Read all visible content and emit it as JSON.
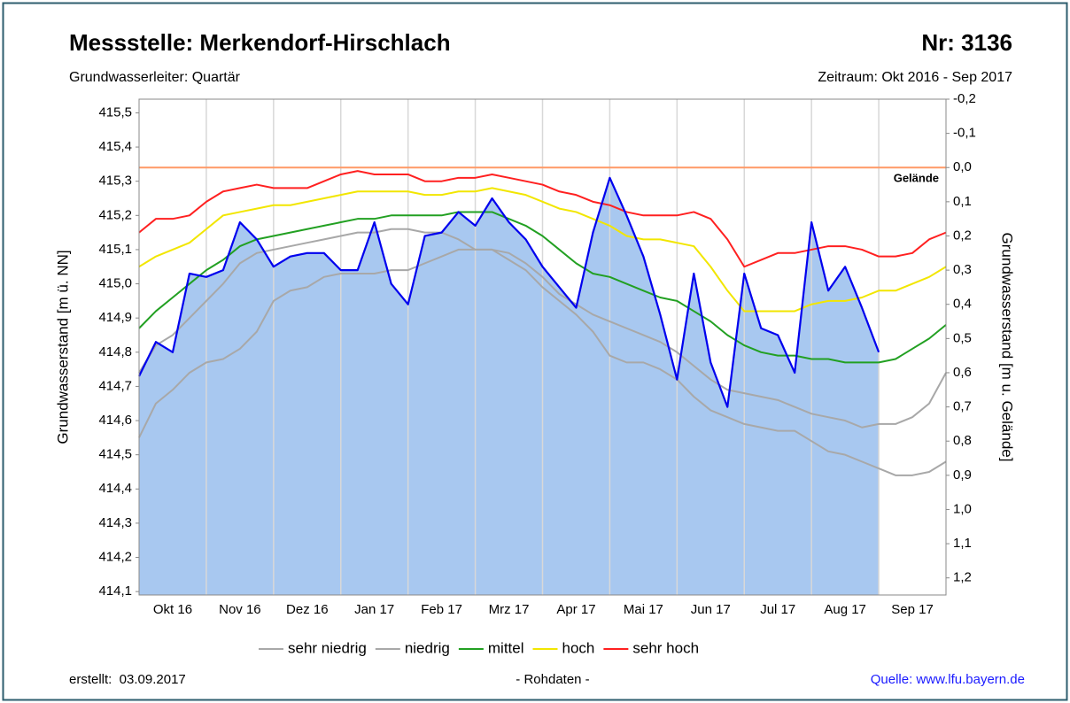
{
  "chart_data": {
    "type": "line",
    "title": "Messstelle: Merkendorf-Hirschlach",
    "number": "Nr: 3136",
    "subtitle": "Grundwasserleiter: Quartär",
    "period": "Zeitraum: Okt 2016 - Sep 2017",
    "ylabel": "Grundwasserstand [m ü. NN]",
    "y2label": "Grundwasserstand [m u. Gelände]",
    "created": "erstellt:  03.09.2017",
    "note": "- Rohdaten -",
    "source": "Quelle: www.lfu.bayern.de",
    "reference_line": {
      "label": "Gelände",
      "value": 415.34,
      "color": "#ff9966"
    },
    "x": [
      0,
      0.25,
      0.5,
      0.75,
      1,
      1.25,
      1.5,
      1.75,
      2,
      2.25,
      2.5,
      2.75,
      3,
      3.25,
      3.5,
      3.75,
      4,
      4.25,
      4.5,
      4.75,
      5,
      5.25,
      5.5,
      5.75,
      6,
      6.25,
      6.5,
      6.75,
      7,
      7.25,
      7.5,
      7.75,
      8,
      8.25,
      8.5,
      8.75,
      9,
      9.25,
      9.5,
      9.75,
      10,
      10.25,
      10.5,
      10.75,
      11,
      11.25,
      11.5,
      11.75,
      12
    ],
    "xlim": [
      0,
      12
    ],
    "xticks": [
      {
        "value": 0.5,
        "label": "Okt 16"
      },
      {
        "value": 1.5,
        "label": "Nov 16"
      },
      {
        "value": 2.5,
        "label": "Dez 16"
      },
      {
        "value": 3.5,
        "label": "Jan 17"
      },
      {
        "value": 4.5,
        "label": "Feb 17"
      },
      {
        "value": 5.5,
        "label": "Mrz 17"
      },
      {
        "value": 6.5,
        "label": "Apr 17"
      },
      {
        "value": 7.5,
        "label": "Mai 17"
      },
      {
        "value": 8.5,
        "label": "Jun 17"
      },
      {
        "value": 9.5,
        "label": "Jul 17"
      },
      {
        "value": 10.5,
        "label": "Aug 17"
      },
      {
        "value": 11.5,
        "label": "Sep 17"
      }
    ],
    "ylim": [
      414.09,
      415.54
    ],
    "yticks": [
      {
        "value": 414.1,
        "label": "414,1"
      },
      {
        "value": 414.2,
        "label": "414,2"
      },
      {
        "value": 414.3,
        "label": "414,3"
      },
      {
        "value": 414.4,
        "label": "414,4"
      },
      {
        "value": 414.5,
        "label": "414,5"
      },
      {
        "value": 414.6,
        "label": "414,6"
      },
      {
        "value": 414.7,
        "label": "414,7"
      },
      {
        "value": 414.8,
        "label": "414,8"
      },
      {
        "value": 414.9,
        "label": "414,9"
      },
      {
        "value": 415.0,
        "label": "415,0"
      },
      {
        "value": 415.1,
        "label": "415,1"
      },
      {
        "value": 415.2,
        "label": "415,2"
      },
      {
        "value": 415.3,
        "label": "415,3"
      },
      {
        "value": 415.4,
        "label": "415,4"
      },
      {
        "value": 415.5,
        "label": "415,5"
      }
    ],
    "y2lim": [
      1.25,
      -0.2
    ],
    "y2ticks": [
      {
        "value": -0.2,
        "label": "-0,2"
      },
      {
        "value": -0.1,
        "label": "-0,1"
      },
      {
        "value": 0.0,
        "label": "0,0"
      },
      {
        "value": 0.1,
        "label": "0,1"
      },
      {
        "value": 0.2,
        "label": "0,2"
      },
      {
        "value": 0.3,
        "label": "0,3"
      },
      {
        "value": 0.4,
        "label": "0,4"
      },
      {
        "value": 0.5,
        "label": "0,5"
      },
      {
        "value": 0.6,
        "label": "0,6"
      },
      {
        "value": 0.7,
        "label": "0,7"
      },
      {
        "value": 0.8,
        "label": "0,8"
      },
      {
        "value": 0.9,
        "label": "0,9"
      },
      {
        "value": 1.0,
        "label": "1,0"
      },
      {
        "value": 1.1,
        "label": "1,1"
      },
      {
        "value": 1.2,
        "label": "1,2"
      }
    ],
    "grid": true,
    "series": [
      {
        "name": "sehr niedrig",
        "color": "#a8a8a8",
        "values": [
          414.55,
          414.65,
          414.69,
          414.74,
          414.77,
          414.78,
          414.81,
          414.86,
          414.95,
          414.98,
          414.99,
          415.02,
          415.03,
          415.03,
          415.03,
          415.04,
          415.04,
          415.06,
          415.08,
          415.1,
          415.1,
          415.1,
          415.07,
          415.04,
          414.99,
          414.95,
          414.91,
          414.86,
          414.79,
          414.77,
          414.77,
          414.75,
          414.72,
          414.67,
          414.63,
          414.61,
          414.59,
          414.58,
          414.57,
          414.57,
          414.54,
          414.51,
          414.5,
          414.48,
          414.46,
          414.44,
          414.44,
          414.45,
          414.48
        ]
      },
      {
        "name": "niedrig",
        "color": "#a8a8a8",
        "values": [
          414.74,
          414.82,
          414.85,
          414.9,
          414.95,
          415.0,
          415.06,
          415.09,
          415.1,
          415.11,
          415.12,
          415.13,
          415.14,
          415.15,
          415.15,
          415.16,
          415.16,
          415.15,
          415.15,
          415.13,
          415.1,
          415.1,
          415.09,
          415.06,
          415.02,
          414.97,
          414.94,
          414.91,
          414.89,
          414.87,
          414.85,
          414.83,
          414.8,
          414.76,
          414.72,
          414.69,
          414.68,
          414.67,
          414.66,
          414.64,
          414.62,
          414.61,
          414.6,
          414.58,
          414.59,
          414.59,
          414.61,
          414.65,
          414.74
        ]
      },
      {
        "name": "mittel",
        "color": "#22a022",
        "values": [
          414.87,
          414.92,
          414.96,
          415.0,
          415.04,
          415.07,
          415.11,
          415.13,
          415.14,
          415.15,
          415.16,
          415.17,
          415.18,
          415.19,
          415.19,
          415.2,
          415.2,
          415.2,
          415.2,
          415.21,
          415.21,
          415.21,
          415.19,
          415.17,
          415.14,
          415.1,
          415.06,
          415.03,
          415.02,
          415.0,
          414.98,
          414.96,
          414.95,
          414.92,
          414.89,
          414.85,
          414.82,
          414.8,
          414.79,
          414.79,
          414.78,
          414.78,
          414.77,
          414.77,
          414.77,
          414.78,
          414.81,
          414.84,
          414.88
        ]
      },
      {
        "name": "hoch",
        "color": "#f2e600",
        "values": [
          415.05,
          415.08,
          415.1,
          415.12,
          415.16,
          415.2,
          415.21,
          415.22,
          415.23,
          415.23,
          415.24,
          415.25,
          415.26,
          415.27,
          415.27,
          415.27,
          415.27,
          415.26,
          415.26,
          415.27,
          415.27,
          415.28,
          415.27,
          415.26,
          415.24,
          415.22,
          415.21,
          415.19,
          415.17,
          415.14,
          415.13,
          415.13,
          415.12,
          415.11,
          415.05,
          414.98,
          414.92,
          414.92,
          414.92,
          414.92,
          414.94,
          414.95,
          414.95,
          414.96,
          414.98,
          414.98,
          415.0,
          415.02,
          415.05
        ]
      },
      {
        "name": "sehr hoch",
        "color": "#ff2020",
        "values": [
          415.15,
          415.19,
          415.19,
          415.2,
          415.24,
          415.27,
          415.28,
          415.29,
          415.28,
          415.28,
          415.28,
          415.3,
          415.32,
          415.33,
          415.32,
          415.32,
          415.32,
          415.3,
          415.3,
          415.31,
          415.31,
          415.32,
          415.31,
          415.3,
          415.29,
          415.27,
          415.26,
          415.24,
          415.23,
          415.21,
          415.2,
          415.2,
          415.2,
          415.21,
          415.19,
          415.13,
          415.05,
          415.07,
          415.09,
          415.09,
          415.1,
          415.11,
          415.11,
          415.1,
          415.08,
          415.08,
          415.09,
          415.13,
          415.15
        ]
      },
      {
        "color": "#0000ee",
        "fill": "#a8c8f0",
        "values": [
          414.73,
          414.83,
          414.8,
          415.03,
          415.02,
          415.04,
          415.18,
          415.13,
          415.05,
          415.08,
          415.09,
          415.09,
          415.04,
          415.04,
          415.18,
          415.0,
          414.94,
          415.14,
          415.15,
          415.21,
          415.17,
          415.25,
          415.18,
          415.13,
          415.05,
          414.99,
          414.93,
          415.15,
          415.31,
          415.2,
          415.08,
          414.91,
          414.72,
          415.03,
          414.77,
          414.64,
          415.03,
          414.87,
          414.85,
          414.74,
          415.18,
          414.98,
          415.05,
          414.93,
          414.8,
          null,
          null,
          null,
          null
        ]
      }
    ]
  }
}
